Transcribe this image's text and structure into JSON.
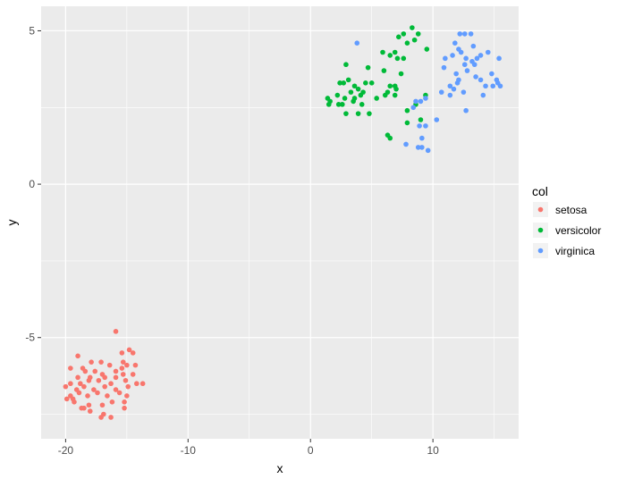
{
  "chart_data": {
    "type": "scatter",
    "xlabel": "x",
    "ylabel": "y",
    "xlim": [
      -22,
      17
    ],
    "ylim": [
      -8.3,
      5.8
    ],
    "x_ticks": [
      -20,
      -10,
      0,
      10
    ],
    "y_ticks": [
      -5,
      0,
      5
    ],
    "grid": true,
    "legend": {
      "title": "col",
      "position": "right"
    },
    "colors": {
      "panel": "#EBEBEB",
      "grid": "#FFFFFF"
    },
    "series": [
      {
        "name": "setosa",
        "color": "#F8766D",
        "points": [
          [
            -15.9,
            -4.8
          ],
          [
            -19.0,
            -5.6
          ],
          [
            -15.4,
            -5.5
          ],
          [
            -14.8,
            -5.4
          ],
          [
            -14.5,
            -5.5
          ],
          [
            -17.9,
            -5.8
          ],
          [
            -17.1,
            -5.8
          ],
          [
            -16.4,
            -5.9
          ],
          [
            -15.3,
            -5.8
          ],
          [
            -15.0,
            -5.9
          ],
          [
            -14.3,
            -5.9
          ],
          [
            -19.6,
            -6.0
          ],
          [
            -18.6,
            -6.0
          ],
          [
            -18.4,
            -6.1
          ],
          [
            -17.6,
            -6.1
          ],
          [
            -17.0,
            -6.2
          ],
          [
            -15.9,
            -6.1
          ],
          [
            -15.4,
            -6.0
          ],
          [
            -19.0,
            -6.3
          ],
          [
            -18.0,
            -6.3
          ],
          [
            -16.8,
            -6.3
          ],
          [
            -15.9,
            -6.3
          ],
          [
            -15.3,
            -6.2
          ],
          [
            -14.5,
            -6.2
          ],
          [
            -19.6,
            -6.5
          ],
          [
            -18.8,
            -6.5
          ],
          [
            -18.1,
            -6.4
          ],
          [
            -17.3,
            -6.4
          ],
          [
            -16.3,
            -6.5
          ],
          [
            -15.1,
            -6.4
          ],
          [
            -14.2,
            -6.5
          ],
          [
            -13.7,
            -6.5
          ],
          [
            -20.0,
            -6.6
          ],
          [
            -19.1,
            -6.7
          ],
          [
            -18.5,
            -6.6
          ],
          [
            -17.7,
            -6.7
          ],
          [
            -16.8,
            -6.6
          ],
          [
            -15.9,
            -6.7
          ],
          [
            -14.9,
            -6.6
          ],
          [
            -19.6,
            -6.9
          ],
          [
            -18.9,
            -6.8
          ],
          [
            -18.2,
            -6.9
          ],
          [
            -17.4,
            -6.8
          ],
          [
            -16.6,
            -6.9
          ],
          [
            -15.6,
            -6.8
          ],
          [
            -15.0,
            -6.9
          ],
          [
            -19.9,
            -7.0
          ],
          [
            -19.3,
            -7.1
          ],
          [
            -18.1,
            -7.2
          ],
          [
            -17.0,
            -7.2
          ],
          [
            -16.2,
            -7.1
          ],
          [
            -15.2,
            -7.1
          ],
          [
            -18.7,
            -7.3
          ],
          [
            -18.0,
            -7.4
          ],
          [
            -16.9,
            -7.5
          ],
          [
            -17.1,
            -7.6
          ],
          [
            -16.3,
            -7.6
          ],
          [
            -15.2,
            -7.3
          ],
          [
            -18.5,
            -7.3
          ],
          [
            -19.4,
            -7.0
          ]
        ]
      },
      {
        "name": "versicolor",
        "color": "#00BA38",
        "points": [
          [
            8.3,
            5.1
          ],
          [
            7.6,
            4.9
          ],
          [
            8.8,
            4.9
          ],
          [
            7.2,
            4.8
          ],
          [
            8.5,
            4.7
          ],
          [
            7.9,
            4.6
          ],
          [
            9.5,
            4.4
          ],
          [
            6.9,
            4.3
          ],
          [
            5.9,
            4.3
          ],
          [
            6.5,
            4.2
          ],
          [
            7.6,
            4.1
          ],
          [
            7.1,
            4.1
          ],
          [
            2.9,
            3.9
          ],
          [
            4.7,
            3.8
          ],
          [
            6.0,
            3.7
          ],
          [
            7.4,
            3.6
          ],
          [
            3.1,
            3.4
          ],
          [
            4.5,
            3.3
          ],
          [
            5.0,
            3.3
          ],
          [
            6.5,
            3.2
          ],
          [
            2.4,
            3.3
          ],
          [
            3.6,
            3.2
          ],
          [
            2.7,
            3.3
          ],
          [
            6.9,
            3.2
          ],
          [
            3.3,
            3.0
          ],
          [
            3.9,
            3.1
          ],
          [
            4.3,
            3.0
          ],
          [
            6.3,
            3.0
          ],
          [
            7.0,
            3.1
          ],
          [
            2.2,
            2.9
          ],
          [
            2.8,
            2.8
          ],
          [
            3.6,
            2.8
          ],
          [
            4.1,
            2.9
          ],
          [
            5.4,
            2.8
          ],
          [
            6.1,
            2.9
          ],
          [
            6.9,
            2.9
          ],
          [
            1.4,
            2.8
          ],
          [
            1.6,
            2.7
          ],
          [
            1.5,
            2.6
          ],
          [
            2.6,
            2.6
          ],
          [
            3.5,
            2.7
          ],
          [
            4.2,
            2.6
          ],
          [
            8.6,
            2.6
          ],
          [
            9.4,
            2.9
          ],
          [
            2.9,
            2.3
          ],
          [
            3.9,
            2.3
          ],
          [
            4.8,
            2.3
          ],
          [
            7.9,
            2.4
          ],
          [
            2.3,
            2.6
          ],
          [
            7.9,
            2.0
          ],
          [
            9.0,
            2.1
          ],
          [
            6.3,
            1.6
          ],
          [
            6.5,
            1.5
          ]
        ]
      },
      {
        "name": "virginica",
        "color": "#619CFF",
        "points": [
          [
            3.8,
            4.6
          ],
          [
            12.2,
            4.9
          ],
          [
            13.1,
            4.9
          ],
          [
            12.6,
            4.9
          ],
          [
            11.8,
            4.6
          ],
          [
            13.3,
            4.5
          ],
          [
            12.1,
            4.4
          ],
          [
            14.5,
            4.3
          ],
          [
            12.3,
            4.3
          ],
          [
            11.6,
            4.2
          ],
          [
            11.0,
            4.1
          ],
          [
            13.6,
            4.1
          ],
          [
            13.9,
            4.2
          ],
          [
            12.7,
            4.1
          ],
          [
            13.2,
            4.0
          ],
          [
            15.4,
            4.1
          ],
          [
            12.6,
            3.9
          ],
          [
            13.4,
            3.9
          ],
          [
            10.9,
            3.8
          ],
          [
            12.8,
            3.7
          ],
          [
            11.9,
            3.6
          ],
          [
            14.8,
            3.6
          ],
          [
            13.5,
            3.5
          ],
          [
            12.1,
            3.4
          ],
          [
            15.2,
            3.4
          ],
          [
            13.9,
            3.4
          ],
          [
            11.4,
            3.2
          ],
          [
            12.0,
            3.3
          ],
          [
            14.3,
            3.2
          ],
          [
            15.3,
            3.3
          ],
          [
            14.9,
            3.2
          ],
          [
            11.7,
            3.1
          ],
          [
            15.5,
            3.2
          ],
          [
            12.5,
            3.0
          ],
          [
            10.7,
            3.0
          ],
          [
            11.4,
            2.9
          ],
          [
            14.1,
            2.9
          ],
          [
            9.4,
            2.8
          ],
          [
            8.6,
            2.7
          ],
          [
            9.0,
            2.7
          ],
          [
            8.4,
            2.5
          ],
          [
            12.7,
            2.4
          ],
          [
            10.3,
            2.1
          ],
          [
            9.4,
            1.9
          ],
          [
            8.9,
            1.9
          ],
          [
            9.1,
            1.5
          ],
          [
            7.8,
            1.3
          ],
          [
            8.8,
            1.2
          ],
          [
            9.1,
            1.2
          ],
          [
            9.6,
            1.1
          ]
        ]
      }
    ]
  }
}
